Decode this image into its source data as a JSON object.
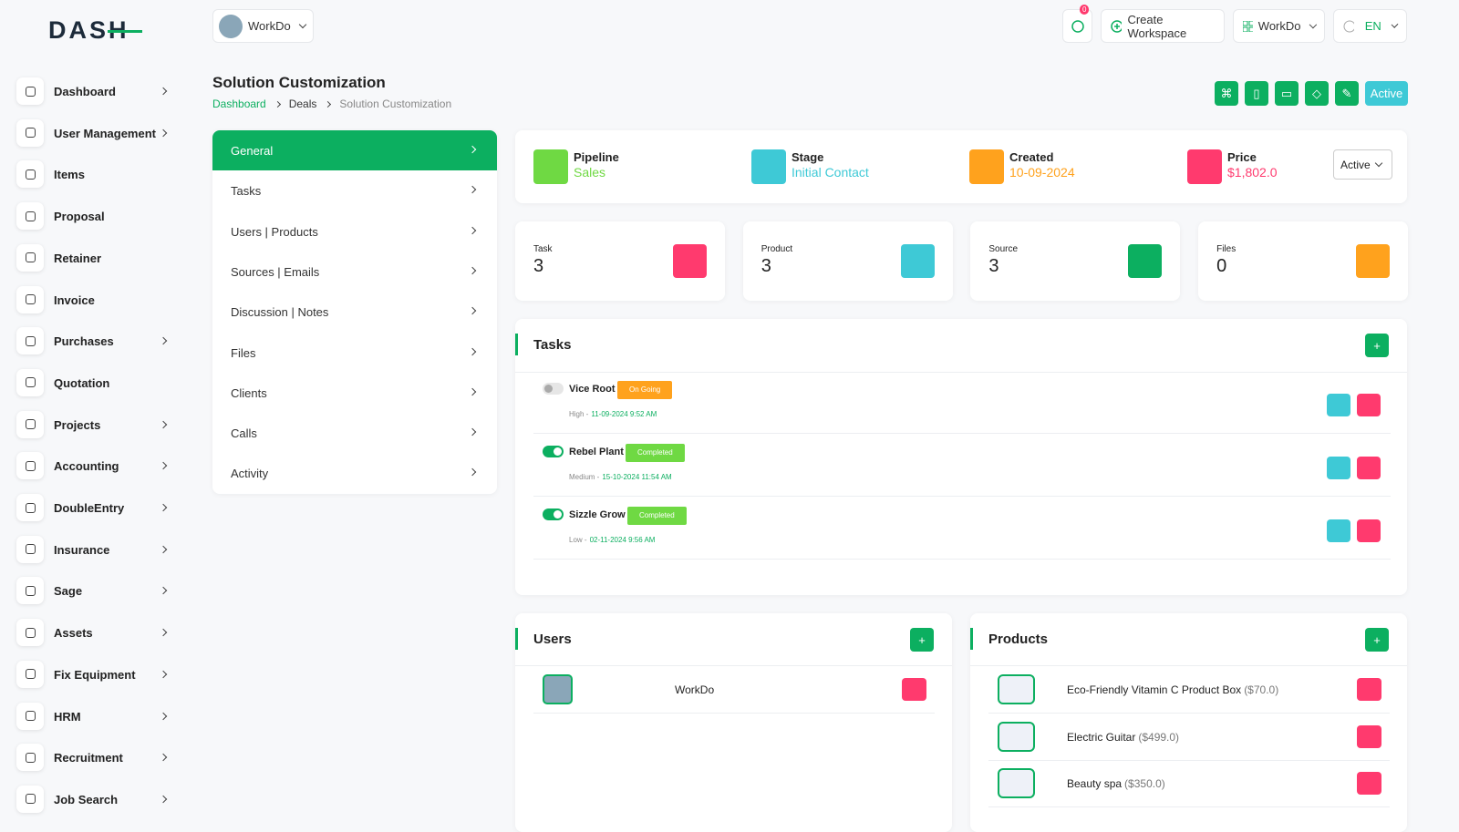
{
  "brand": "DASH",
  "sidebar": {
    "items": [
      {
        "label": "Dashboard",
        "submenu": true
      },
      {
        "label": "User Management",
        "submenu": true
      },
      {
        "label": "Items",
        "submenu": false
      },
      {
        "label": "Proposal",
        "submenu": false
      },
      {
        "label": "Retainer",
        "submenu": false
      },
      {
        "label": "Invoice",
        "submenu": false
      },
      {
        "label": "Purchases",
        "submenu": true
      },
      {
        "label": "Quotation",
        "submenu": false
      },
      {
        "label": "Projects",
        "submenu": true
      },
      {
        "label": "Accounting",
        "submenu": true
      },
      {
        "label": "DoubleEntry",
        "submenu": true
      },
      {
        "label": "Insurance",
        "submenu": true
      },
      {
        "label": "Sage",
        "submenu": true
      },
      {
        "label": "Assets",
        "submenu": true
      },
      {
        "label": "Fix Equipment",
        "submenu": true
      },
      {
        "label": "HRM",
        "submenu": true
      },
      {
        "label": "Recruitment",
        "submenu": true
      },
      {
        "label": "Job Search",
        "submenu": true
      }
    ]
  },
  "header": {
    "workspace": "WorkDo",
    "notifications": 0,
    "create_workspace": "Create Workspace",
    "user": "WorkDo",
    "language": "EN"
  },
  "page": {
    "title": "Solution Customization",
    "breadcrumb": [
      "Dashboard",
      "Deals",
      "Solution Customization"
    ],
    "status": "Active"
  },
  "tabs": {
    "items": [
      "General",
      "Tasks",
      "Users | Products",
      "Sources | Emails",
      "Discussion | Notes",
      "Files",
      "Clients",
      "Calls",
      "Activity"
    ],
    "active": 0
  },
  "summary": {
    "items": [
      {
        "label": "Pipeline",
        "value": "Sales",
        "color": "#6fd943"
      },
      {
        "label": "Stage",
        "value": "Initial Contact",
        "color": "#3ec9d6"
      },
      {
        "label": "Created",
        "value": "10-09-2024",
        "color": "#ffa21d"
      },
      {
        "label": "Price",
        "value": "$1,802.0",
        "color": "#ff3a6e"
      }
    ],
    "status": "Active"
  },
  "stats": [
    {
      "label": "Task",
      "value": 3,
      "color": "#ff3a6e"
    },
    {
      "label": "Product",
      "value": 3,
      "color": "#3ec9d6"
    },
    {
      "label": "Source",
      "value": 3,
      "color": "#0caf60"
    },
    {
      "label": "Files",
      "value": 0,
      "color": "#ffa21d"
    }
  ],
  "tasks": {
    "title": "Tasks",
    "items": [
      {
        "name": "Vice Root",
        "status": "On Going",
        "done": false,
        "priority": "High -",
        "date": "11-09-2024 9:52 AM"
      },
      {
        "name": "Rebel Plant",
        "status": "Completed",
        "done": true,
        "priority": "Medium -",
        "date": "15-10-2024 11:54 AM"
      },
      {
        "name": "Sizzle Grow",
        "status": "Completed",
        "done": true,
        "priority": "Low -",
        "date": "02-11-2024 9:56 AM"
      }
    ]
  },
  "users": {
    "title": "Users",
    "items": [
      "WorkDo"
    ]
  },
  "products": {
    "title": "Products",
    "items": [
      {
        "name": "Eco-Friendly Vitamin C Product Box",
        "price": "($70.0)"
      },
      {
        "name": "Electric Guitar",
        "price": "($499.0)"
      },
      {
        "name": "Beauty spa",
        "price": "($350.0)"
      }
    ]
  }
}
